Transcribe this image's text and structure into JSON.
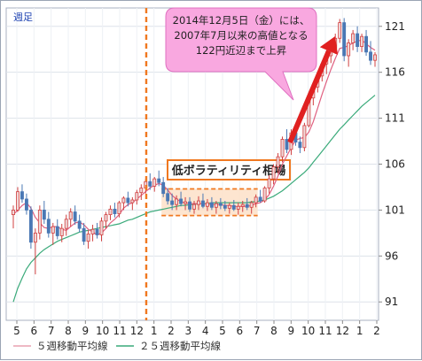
{
  "chart_data": {
    "type": "candlestick",
    "period_label": "週足",
    "yticks": [
      91,
      96,
      101,
      106,
      111,
      116,
      121
    ],
    "ylim": [
      89,
      123
    ],
    "xticks": [
      "5",
      "6",
      "7",
      "8",
      "9",
      "10",
      "11",
      "12",
      "1",
      "2",
      "3",
      "4",
      "5",
      "6",
      "7",
      "8",
      "9",
      "10",
      "11",
      "12",
      "1",
      "2"
    ],
    "annotation_callout": [
      "2014年12月5日（金）には、",
      "2007年7月以来の高値となる",
      "122円近辺まで上昇"
    ],
    "annotation_box": "低ボラティリティ相場",
    "legend": [
      {
        "name": "５週移動平均線",
        "color": "#e8a0b0"
      },
      {
        "name": "２５週移動平均線",
        "color": "#3aaa7a"
      }
    ],
    "colors": {
      "up": "#f0d8d8",
      "up_edge": "#d04040",
      "down": "#4a78b4",
      "ma5": "#e06080",
      "ma25": "#3aaa7a",
      "dashed": "#f07820",
      "highlight_fill": "#fde0c8",
      "arrow": "#e02020",
      "callout_fill": "#f9a8e0"
    },
    "candles": [
      [
        100.5,
        101.5,
        99.0,
        101.0
      ],
      [
        101.0,
        103.5,
        100.8,
        103.0
      ],
      [
        103.0,
        103.8,
        101.8,
        102.2
      ],
      [
        102.2,
        102.8,
        100.5,
        101.0
      ],
      [
        101.0,
        101.4,
        96.8,
        97.5
      ],
      [
        97.5,
        99.0,
        94.0,
        98.5
      ],
      [
        98.5,
        101.5,
        97.8,
        101.0
      ],
      [
        101.0,
        102.0,
        99.5,
        100.0
      ],
      [
        100.0,
        100.8,
        98.0,
        98.5
      ],
      [
        98.5,
        99.6,
        97.2,
        99.2
      ],
      [
        99.2,
        100.0,
        97.8,
        98.2
      ],
      [
        98.2,
        99.5,
        97.5,
        99.0
      ],
      [
        99.0,
        100.5,
        98.2,
        100.0
      ],
      [
        100.0,
        101.2,
        99.2,
        100.8
      ],
      [
        100.8,
        101.5,
        99.4,
        99.8
      ],
      [
        99.8,
        100.5,
        98.6,
        99.0
      ],
      [
        99.0,
        99.6,
        97.2,
        97.6
      ],
      [
        97.6,
        98.8,
        96.8,
        98.4
      ],
      [
        98.4,
        99.4,
        97.6,
        98.9
      ],
      [
        98.9,
        99.6,
        97.9,
        98.3
      ],
      [
        98.3,
        100.2,
        97.6,
        99.8
      ],
      [
        99.8,
        100.8,
        99.0,
        100.5
      ],
      [
        100.5,
        101.5,
        99.9,
        101.1
      ],
      [
        101.1,
        101.8,
        100.2,
        100.6
      ],
      [
        100.6,
        102.0,
        100.2,
        101.8
      ],
      [
        101.8,
        102.5,
        101.0,
        102.3
      ],
      [
        102.3,
        103.0,
        101.4,
        101.8
      ],
      [
        101.8,
        102.4,
        101.0,
        102.1
      ],
      [
        102.1,
        103.2,
        101.6,
        102.9
      ],
      [
        102.9,
        103.8,
        102.1,
        103.4
      ],
      [
        103.4,
        104.4,
        102.8,
        104.1
      ],
      [
        104.1,
        105.0,
        103.2,
        103.6
      ],
      [
        103.6,
        104.6,
        103.0,
        104.4
      ],
      [
        104.4,
        105.3,
        103.6,
        104.0
      ],
      [
        104.0,
        104.6,
        102.4,
        102.8
      ],
      [
        102.8,
        103.4,
        101.6,
        102.0
      ],
      [
        102.0,
        102.8,
        101.0,
        101.6
      ],
      [
        101.6,
        102.6,
        101.0,
        102.2
      ],
      [
        102.2,
        103.0,
        101.4,
        101.7
      ],
      [
        101.7,
        102.4,
        101.0,
        101.9
      ],
      [
        101.9,
        102.4,
        100.8,
        101.1
      ],
      [
        101.1,
        102.0,
        100.6,
        101.6
      ],
      [
        101.6,
        102.5,
        101.0,
        102.0
      ],
      [
        102.0,
        102.8,
        101.2,
        101.4
      ],
      [
        101.4,
        102.2,
        100.9,
        101.8
      ],
      [
        101.8,
        102.4,
        101.0,
        101.3
      ],
      [
        101.3,
        102.0,
        100.6,
        101.7
      ],
      [
        101.7,
        102.3,
        101.1,
        101.5
      ],
      [
        101.5,
        102.0,
        100.9,
        101.2
      ],
      [
        101.2,
        101.8,
        100.6,
        101.5
      ],
      [
        101.5,
        102.1,
        100.9,
        101.1
      ],
      [
        101.1,
        101.8,
        100.5,
        101.4
      ],
      [
        101.4,
        102.0,
        100.8,
        101.6
      ],
      [
        101.6,
        102.3,
        101.0,
        101.3
      ],
      [
        101.3,
        102.0,
        100.6,
        101.8
      ],
      [
        101.8,
        102.7,
        101.3,
        102.4
      ],
      [
        102.4,
        103.2,
        101.8,
        102.0
      ],
      [
        102.0,
        103.6,
        101.8,
        103.4
      ],
      [
        103.4,
        104.8,
        102.8,
        104.4
      ],
      [
        104.4,
        106.0,
        103.8,
        105.7
      ],
      [
        105.7,
        107.2,
        105.0,
        106.8
      ],
      [
        106.8,
        109.0,
        106.2,
        108.7
      ],
      [
        108.7,
        109.8,
        107.2,
        107.6
      ],
      [
        107.6,
        109.8,
        107.0,
        109.4
      ],
      [
        109.4,
        110.2,
        108.0,
        108.4
      ],
      [
        108.4,
        109.0,
        107.2,
        107.8
      ],
      [
        107.8,
        110.5,
        107.4,
        110.2
      ],
      [
        110.2,
        113.5,
        110.0,
        113.2
      ],
      [
        113.2,
        114.8,
        112.4,
        114.4
      ],
      [
        114.4,
        116.0,
        113.8,
        115.6
      ],
      [
        115.6,
        117.2,
        115.0,
        116.9
      ],
      [
        116.9,
        118.2,
        115.8,
        117.8
      ],
      [
        117.8,
        119.0,
        117.0,
        118.6
      ],
      [
        118.6,
        120.2,
        118.0,
        119.7
      ],
      [
        119.7,
        121.8,
        119.2,
        121.4
      ],
      [
        121.4,
        121.9,
        117.2,
        117.8
      ],
      [
        117.8,
        119.6,
        116.6,
        119.2
      ],
      [
        119.2,
        120.6,
        118.4,
        120.2
      ],
      [
        120.2,
        121.0,
        118.2,
        118.8
      ],
      [
        118.8,
        120.2,
        118.2,
        119.9
      ],
      [
        119.9,
        120.6,
        117.8,
        118.2
      ],
      [
        118.2,
        119.4,
        116.8,
        117.3
      ],
      [
        117.3,
        118.2,
        116.6,
        117.9
      ]
    ],
    "ma5": [
      100.5,
      101.0,
      101.5,
      101.8,
      101.2,
      100.2,
      99.6,
      99.1,
      99.0,
      99.2,
      99.2,
      98.9,
      98.8,
      99.2,
      99.6,
      99.7,
      99.4,
      98.9,
      98.6,
      98.3,
      98.5,
      99.0,
      99.6,
      100.0,
      100.5,
      101.2,
      101.6,
      101.8,
      102.2,
      102.6,
      103.0,
      103.4,
      103.7,
      103.9,
      103.7,
      103.2,
      102.6,
      102.2,
      101.9,
      101.8,
      101.7,
      101.7,
      101.7,
      101.7,
      101.6,
      101.6,
      101.6,
      101.6,
      101.5,
      101.5,
      101.4,
      101.4,
      101.4,
      101.4,
      101.5,
      101.7,
      101.8,
      102.1,
      102.7,
      103.6,
      104.7,
      106.0,
      106.9,
      107.8,
      108.6,
      108.8,
      108.9,
      109.5,
      110.6,
      112.1,
      113.6,
      115.0,
      116.3,
      117.5,
      118.6,
      118.7,
      118.9,
      119.2,
      119.4,
      119.5,
      119.1,
      118.7,
      118.4
    ],
    "ma25": [
      91.0,
      92.5,
      93.6,
      94.6,
      95.3,
      95.8,
      96.3,
      96.7,
      97.0,
      97.3,
      97.6,
      97.8,
      98.0,
      98.2,
      98.4,
      98.6,
      98.7,
      98.8,
      98.9,
      99.0,
      99.1,
      99.2,
      99.3,
      99.4,
      99.5,
      99.7,
      99.9,
      100.0,
      100.2,
      100.4,
      100.6,
      100.8,
      100.9,
      101.0,
      101.1,
      101.2,
      101.3,
      101.4,
      101.5,
      101.5,
      101.6,
      101.6,
      101.7,
      101.7,
      101.7,
      101.8,
      101.8,
      101.8,
      101.8,
      101.8,
      101.8,
      101.8,
      101.8,
      101.8,
      101.9,
      101.9,
      102.0,
      102.1,
      102.3,
      102.5,
      102.8,
      103.1,
      103.5,
      103.9,
      104.3,
      104.7,
      105.1,
      105.6,
      106.2,
      106.8,
      107.4,
      108.0,
      108.6,
      109.2,
      109.8,
      110.3,
      110.8,
      111.3,
      111.8,
      112.3,
      112.7,
      113.1,
      113.5
    ]
  }
}
